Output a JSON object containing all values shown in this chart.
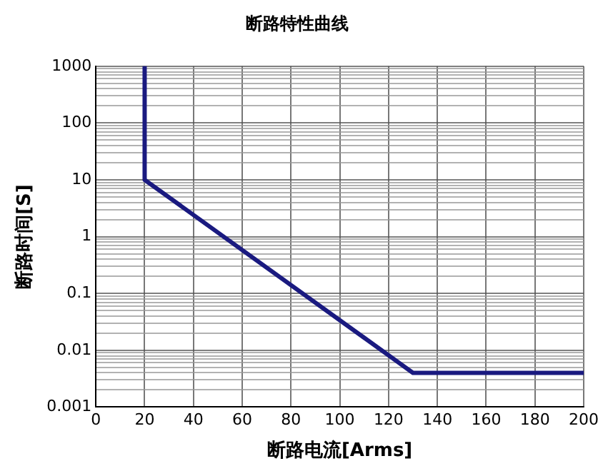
{
  "chart_data": {
    "type": "line",
    "title": "断路特性曲线",
    "xlabel": "断路电流[Arms]",
    "ylabel": "断路时间[S]",
    "x": [
      20,
      20,
      130,
      200
    ],
    "series": [
      {
        "color": "#1a1a80",
        "values": [
          1000,
          10,
          0.004,
          0.004
        ]
      }
    ],
    "xlim": [
      0,
      200
    ],
    "xticks": [
      0,
      20,
      40,
      60,
      80,
      100,
      120,
      140,
      160,
      180,
      200
    ],
    "ylim": [
      0.001,
      1000
    ],
    "log": true,
    "yticks": [
      0.001,
      {
        "value": 0.002,
        "label": null
      },
      {
        "value": 0.003,
        "label": null
      },
      {
        "value": 0.004,
        "label": null
      },
      {
        "value": 0.005,
        "label": null
      },
      {
        "value": 0.006,
        "label": null
      },
      {
        "value": 0.007,
        "label": null
      },
      {
        "value": 0.008,
        "label": null
      },
      {
        "value": 0.009,
        "label": null
      },
      0.01,
      {
        "value": 0.02,
        "label": null
      },
      {
        "value": 0.03,
        "label": null
      },
      {
        "value": 0.04,
        "label": null
      },
      {
        "value": 0.05,
        "label": null
      },
      {
        "value": 0.06,
        "label": null
      },
      {
        "value": 0.07,
        "label": null
      },
      {
        "value": 0.08,
        "label": null
      },
      {
        "value": 0.09,
        "label": null
      },
      0.1,
      {
        "value": 0.2,
        "label": null
      },
      {
        "value": 0.3,
        "label": null
      },
      {
        "value": 0.4,
        "label": null
      },
      {
        "value": 0.5,
        "label": null
      },
      {
        "value": 0.6,
        "label": null
      },
      {
        "value": 0.7,
        "label": null
      },
      {
        "value": 0.8,
        "label": null
      },
      {
        "value": 0.9,
        "label": null
      },
      1,
      {
        "value": 2,
        "label": null
      },
      {
        "value": 3,
        "label": null
      },
      {
        "value": 4,
        "label": null
      },
      {
        "value": 5,
        "label": null
      },
      {
        "value": 6,
        "label": null
      },
      {
        "value": 7,
        "label": null
      },
      {
        "value": 8,
        "label": null
      },
      {
        "value": 9,
        "label": null
      },
      10,
      {
        "value": 20,
        "label": null
      },
      {
        "value": 30,
        "label": null
      },
      {
        "value": 40,
        "label": null
      },
      {
        "value": 50,
        "label": null
      },
      {
        "value": 60,
        "label": null
      },
      {
        "value": 70,
        "label": null
      },
      {
        "value": 80,
        "label": null
      },
      {
        "value": 90,
        "label": null
      },
      100,
      {
        "value": 200,
        "label": null
      },
      {
        "value": 300,
        "label": null
      },
      {
        "value": 400,
        "label": null
      },
      {
        "value": 500,
        "label": null
      },
      {
        "value": 600,
        "label": null
      },
      {
        "value": 700,
        "label": null
      },
      {
        "value": 800,
        "label": null
      },
      {
        "value": 900,
        "label": null
      },
      1000
    ],
    "grid": true,
    "marker": "none",
    "line_style": "solid",
    "legend": false
  }
}
